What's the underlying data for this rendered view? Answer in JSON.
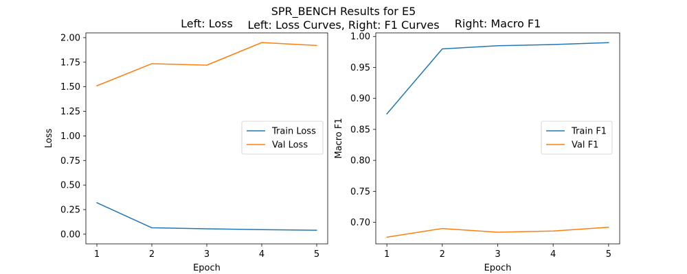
{
  "figure": {
    "suptitle": "SPR_BENCH Results for E5",
    "subtitle": "Left: Loss Curves, Right: F1 Curves"
  },
  "chart_data": [
    {
      "type": "line",
      "title": "Left: Loss",
      "xlabel": "Epoch",
      "ylabel": "Loss",
      "x": [
        1,
        2,
        3,
        4,
        5
      ],
      "xlim": [
        0.8,
        5.2
      ],
      "ylim": [
        -0.0985,
        2.0485
      ],
      "xticks": [
        1,
        2,
        3,
        4,
        5
      ],
      "yticks": [
        0.0,
        0.25,
        0.5,
        0.75,
        1.0,
        1.25,
        1.5,
        1.75,
        2.0
      ],
      "tick_decimals": 2,
      "legend_position": "center-right",
      "series": [
        {
          "name": "Train Loss",
          "color": "#1f77b4",
          "values": [
            0.32,
            0.065,
            0.055,
            0.046,
            0.04
          ]
        },
        {
          "name": "Val Loss",
          "color": "#ff7f0e",
          "values": [
            1.51,
            1.735,
            1.72,
            1.95,
            1.92
          ]
        }
      ]
    },
    {
      "type": "line",
      "title": "Right: Macro F1",
      "xlabel": "Epoch",
      "ylabel": "Macro F1",
      "x": [
        1,
        2,
        3,
        4,
        5
      ],
      "xlim": [
        0.8,
        5.2
      ],
      "ylim": [
        0.6652,
        1.0058
      ],
      "xticks": [
        1,
        2,
        3,
        4,
        5
      ],
      "yticks": [
        0.7,
        0.75,
        0.8,
        0.85,
        0.9,
        0.95,
        1.0
      ],
      "tick_decimals": 2,
      "legend_position": "center-right",
      "series": [
        {
          "name": "Train F1",
          "color": "#1f77b4",
          "values": [
            0.875,
            0.98,
            0.985,
            0.987,
            0.99
          ]
        },
        {
          "name": "Val F1",
          "color": "#ff7f0e",
          "values": [
            0.676,
            0.69,
            0.684,
            0.686,
            0.692
          ]
        }
      ]
    }
  ]
}
